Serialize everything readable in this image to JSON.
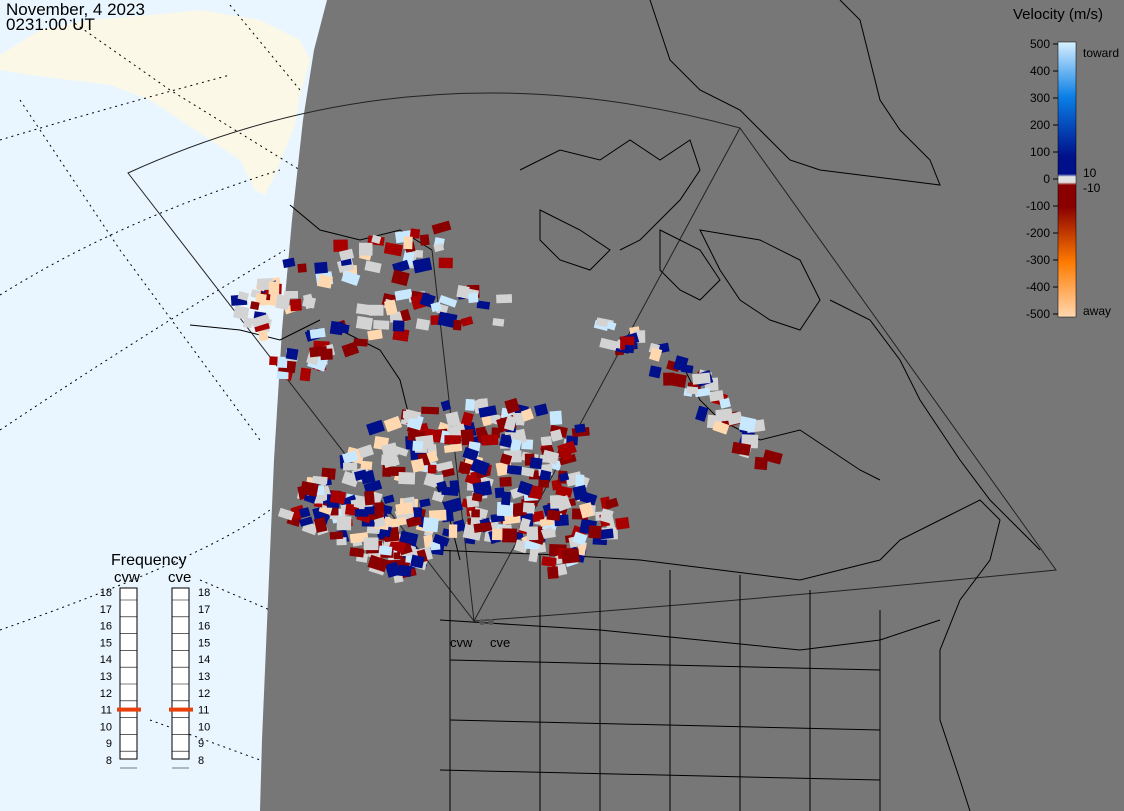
{
  "header": {
    "date": "November, 4 2023",
    "time": "0231:00 UT"
  },
  "legend": {
    "title": "Velocity (m/s)",
    "ticks": [
      "500",
      "400",
      "300",
      "200",
      "100",
      "0",
      "-100",
      "-200",
      "-300",
      "-400",
      "-500"
    ],
    "label_toward": "toward",
    "label_away": "away",
    "marker_pos": "10",
    "marker_neg": "-10",
    "colors": {
      "toward_max": "#d8f0ff",
      "toward_mid": "#0a7fe6",
      "toward_min": "#000f8a",
      "zero": "#e0e0e0",
      "away_min": "#8a0000",
      "away_mid": "#ff7a00",
      "away_max": "#ffd8b0"
    }
  },
  "frequency": {
    "title": "Frequency",
    "radars": [
      {
        "code": "cvw",
        "value": 11
      },
      {
        "code": "cve",
        "value": 11
      }
    ],
    "scale": [
      "18",
      "17",
      "16",
      "15",
      "14",
      "13",
      "12",
      "11",
      "10",
      "9",
      "8"
    ],
    "marker_color": "#e8400a"
  },
  "radar_sites": [
    "cvw",
    "cve"
  ],
  "colors": {
    "land": "#777777",
    "ocean": "#e9f6ff",
    "greenland_ice": "#fbf8e8",
    "border": "#000000",
    "no_velocity": "#d3d3d3"
  }
}
